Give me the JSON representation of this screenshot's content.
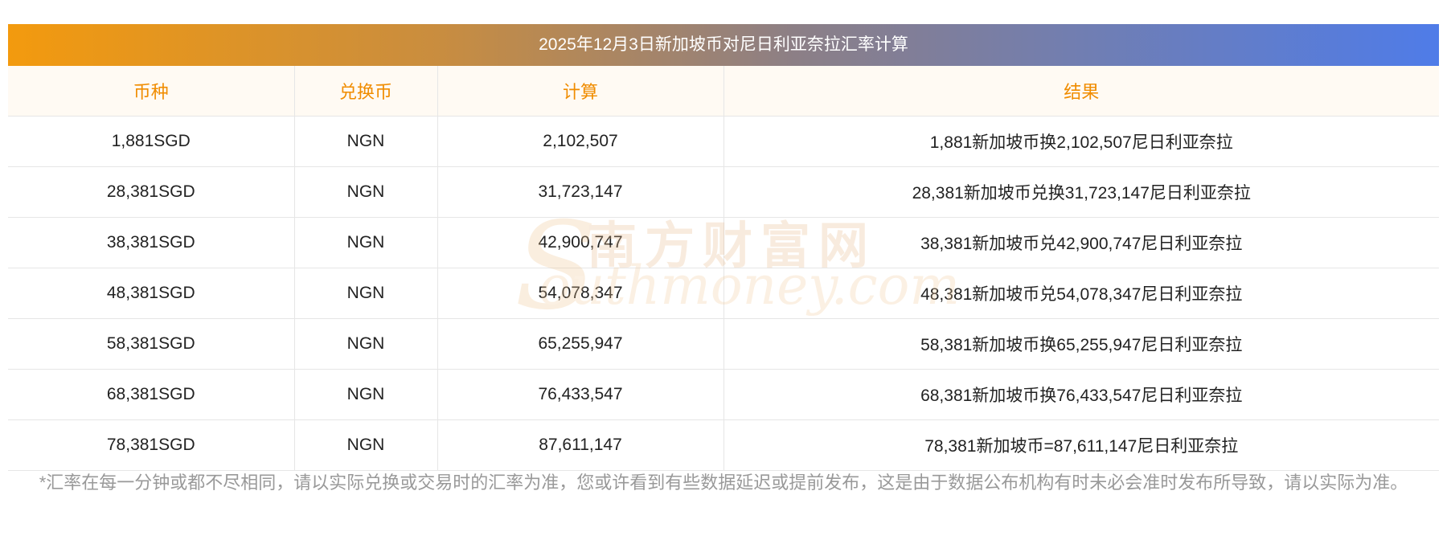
{
  "title": "2025年12月3日新加坡币对尼日利亚奈拉汇率计算",
  "headers": [
    "币种",
    "兑换币",
    "计算",
    "结果"
  ],
  "rows": [
    [
      "1,881SGD",
      "NGN",
      "2,102,507",
      "1,881新加坡币换2,102,507尼日利亚奈拉"
    ],
    [
      "28,381SGD",
      "NGN",
      "31,723,147",
      "28,381新加坡币兑换31,723,147尼日利亚奈拉"
    ],
    [
      "38,381SGD",
      "NGN",
      "42,900,747",
      "38,381新加坡币兑42,900,747尼日利亚奈拉"
    ],
    [
      "48,381SGD",
      "NGN",
      "54,078,347",
      "48,381新加坡币兑54,078,347尼日利亚奈拉"
    ],
    [
      "58,381SGD",
      "NGN",
      "65,255,947",
      "58,381新加坡币换65,255,947尼日利亚奈拉"
    ],
    [
      "68,381SGD",
      "NGN",
      "76,433,547",
      "68,381新加坡币换76,433,547尼日利亚奈拉"
    ],
    [
      "78,381SGD",
      "NGN",
      "87,611,147",
      "78,381新加坡币=87,611,147尼日利亚奈拉"
    ]
  ],
  "note": "*汇率在每一分钟或都不尽相同，请以实际兑换或交易时的汇率为准，您或许看到有些数据延迟或提前发布，这是由于数据公布机构有时未必会准时发布所导致，请以实际为准。",
  "watermark": {
    "cn": "南方财富网",
    "en": "outhmoney.com",
    "s": "S"
  },
  "colors": {
    "header_text": "#f08c00",
    "gradient_start": "#f39a0e",
    "gradient_end": "#4f7ce8"
  }
}
